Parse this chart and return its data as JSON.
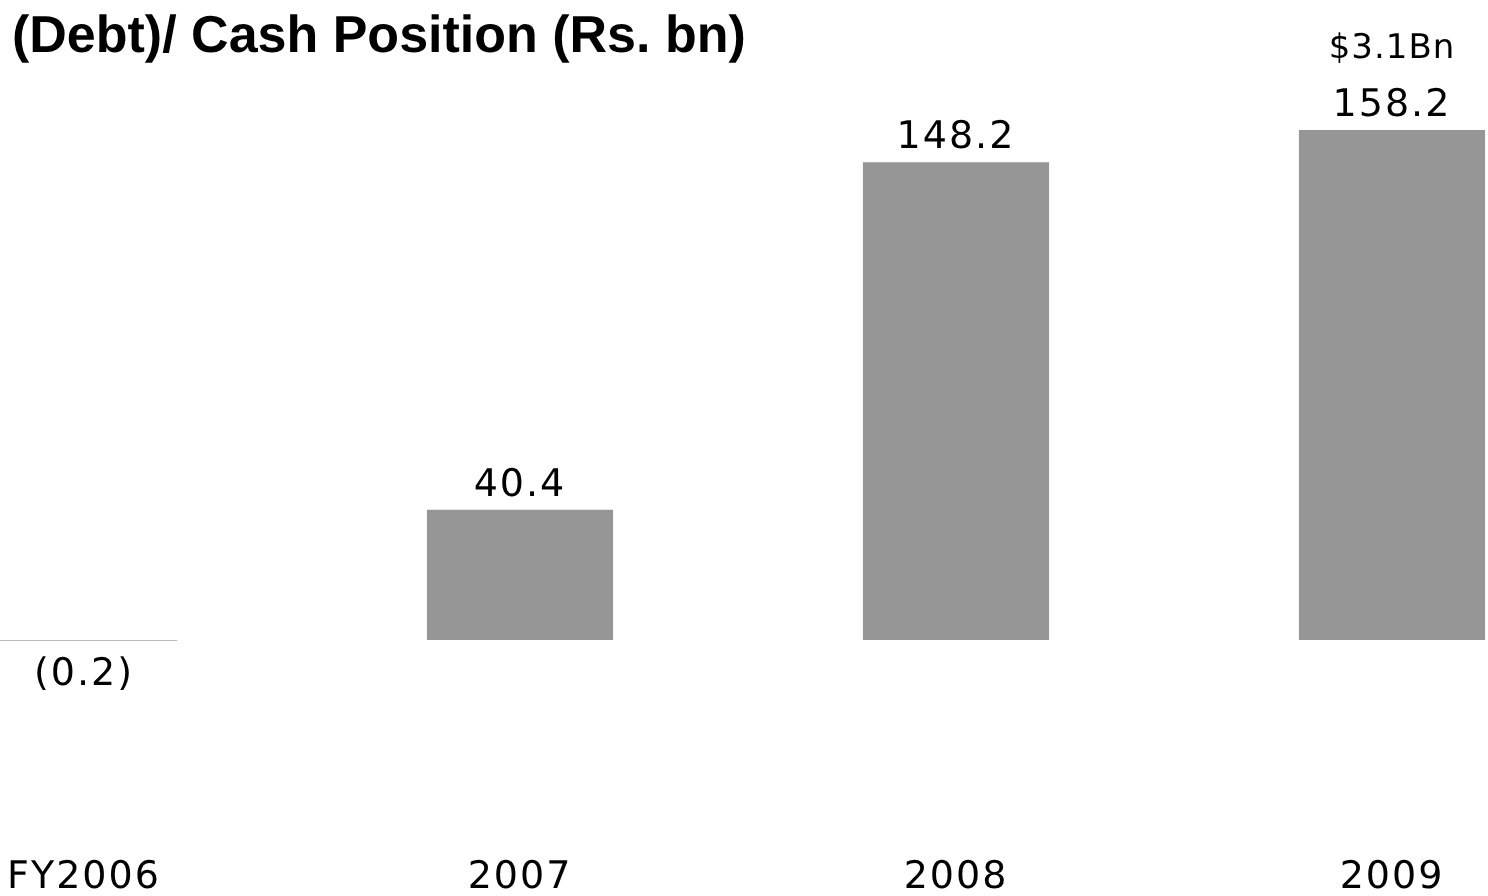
{
  "chart_data": {
    "type": "bar",
    "title": "(Debt)/ Cash Position (Rs. bn)",
    "categories": [
      "FY2006",
      "2007",
      "2008",
      "2009"
    ],
    "values": [
      -0.2,
      40.4,
      148.2,
      158.2
    ],
    "color": "#969696",
    "value_labels": [
      "(0.2)",
      "40.4",
      "148.2",
      "158.2"
    ],
    "annotations": [
      {
        "text": "$3.1Bn",
        "x": "2009",
        "y": 158.2
      }
    ]
  }
}
